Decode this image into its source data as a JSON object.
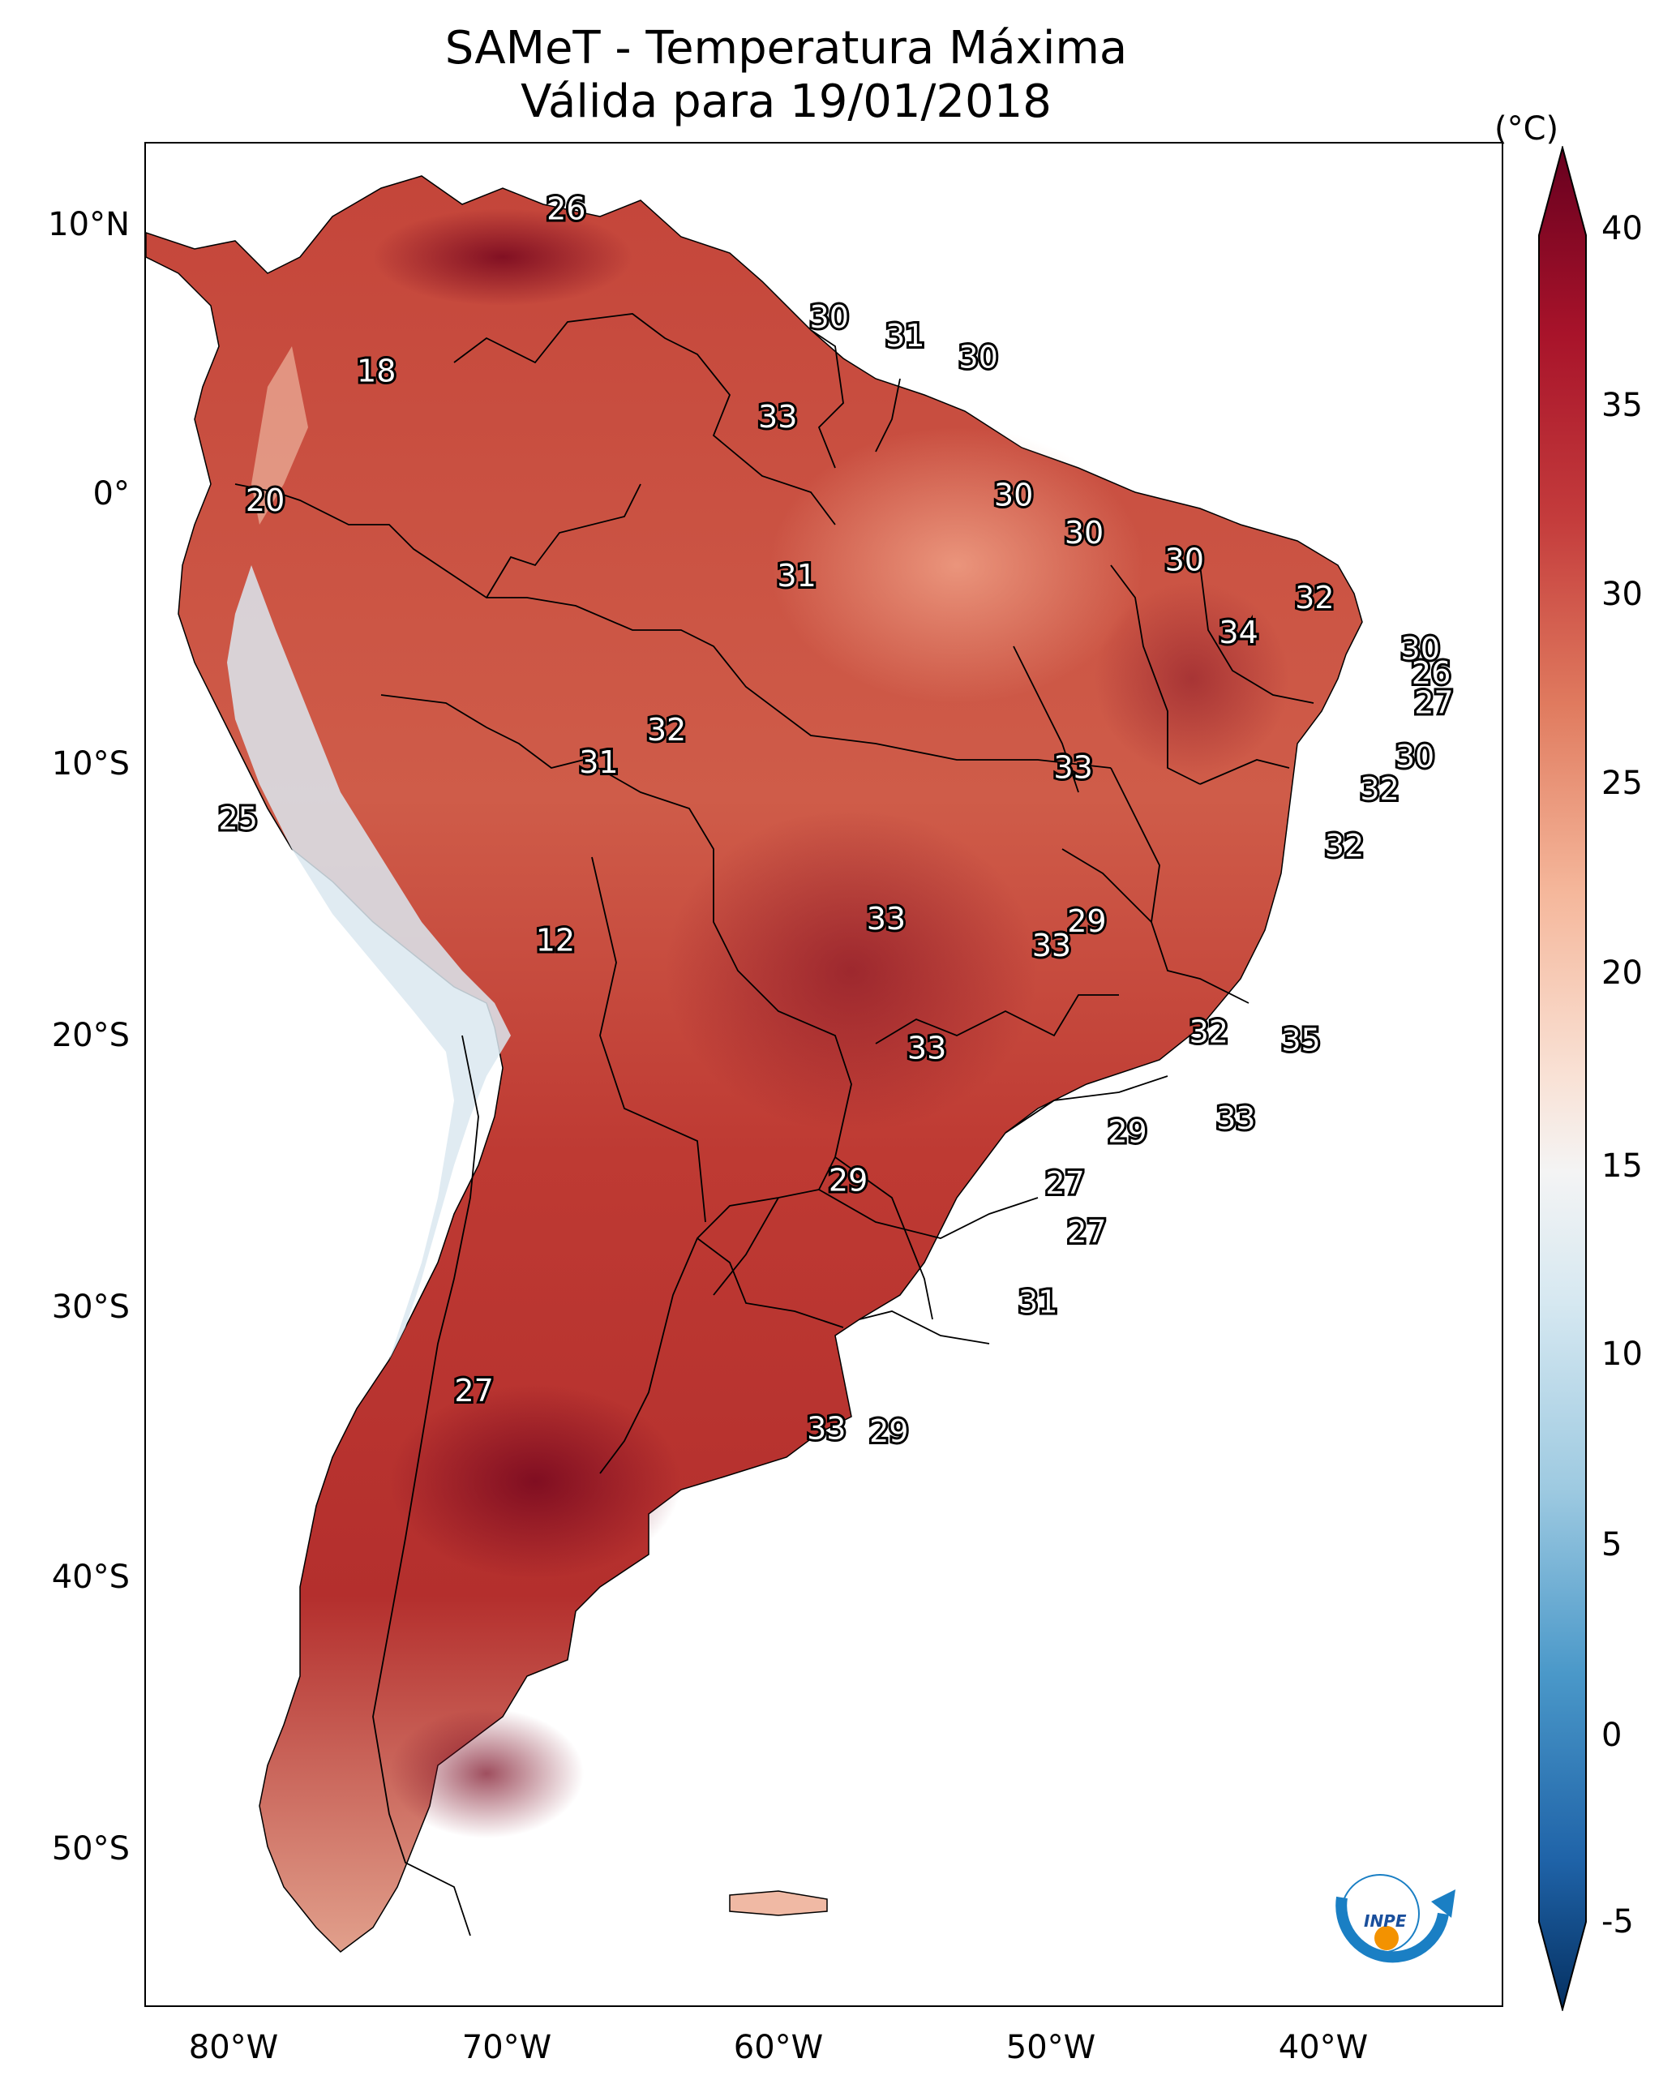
{
  "title": {
    "line1": "SAMeT - Temperatura Máxima",
    "line2": "Válida para 19/01/2018"
  },
  "colorbar": {
    "unit": "(°C)",
    "ticks": [
      "40",
      "35",
      "30",
      "25",
      "20",
      "15",
      "10",
      "5",
      "0",
      "-5"
    ],
    "colors": [
      "#67001f",
      "#b2182b",
      "#d6604d",
      "#f4a582",
      "#fddbc7",
      "#f7f7f7",
      "#d1e5f0",
      "#92c5de",
      "#4393c3",
      "#2166ac",
      "#053061"
    ]
  },
  "axes": {
    "lat_labels": [
      "10°N",
      "0°",
      "10°S",
      "20°S",
      "30°S",
      "40°S",
      "50°S"
    ],
    "lon_labels": [
      "80°W",
      "70°W",
      "60°W",
      "50°W",
      "40°W"
    ]
  },
  "map_data": {
    "variable": "Temperatura Máxima",
    "units": "°C",
    "lon_range": [
      -83,
      -33
    ],
    "lat_range": [
      -56,
      13
    ],
    "contour_labels": [
      {
        "value": "26",
        "lon": -67.5,
        "lat": 10.5
      },
      {
        "value": "18",
        "lon": -74.5,
        "lat": 4.5
      },
      {
        "value": "30",
        "lon": -57.8,
        "lat": 6.5
      },
      {
        "value": "31",
        "lon": -55.0,
        "lat": 5.8
      },
      {
        "value": "30",
        "lon": -52.3,
        "lat": 5.0
      },
      {
        "value": "33",
        "lon": -59.7,
        "lat": 2.8
      },
      {
        "value": "20",
        "lon": -78.6,
        "lat": -0.3
      },
      {
        "value": "30",
        "lon": -51.0,
        "lat": -0.1
      },
      {
        "value": "30",
        "lon": -48.4,
        "lat": -1.5
      },
      {
        "value": "30",
        "lon": -44.7,
        "lat": -2.5
      },
      {
        "value": "31",
        "lon": -59.0,
        "lat": -3.1
      },
      {
        "value": "32",
        "lon": -39.9,
        "lat": -3.9
      },
      {
        "value": "34",
        "lon": -42.7,
        "lat": -5.2
      },
      {
        "value": "30",
        "lon": -36.0,
        "lat": -5.8
      },
      {
        "value": "26",
        "lon": -35.6,
        "lat": -6.7
      },
      {
        "value": "27",
        "lon": -35.5,
        "lat": -7.8
      },
      {
        "value": "32",
        "lon": -63.8,
        "lat": -8.8
      },
      {
        "value": "31",
        "lon": -66.3,
        "lat": -10.0
      },
      {
        "value": "33",
        "lon": -48.8,
        "lat": -10.2
      },
      {
        "value": "30",
        "lon": -36.2,
        "lat": -9.8
      },
      {
        "value": "32",
        "lon": -37.5,
        "lat": -11.0
      },
      {
        "value": "25",
        "lon": -79.6,
        "lat": -12.1
      },
      {
        "value": "32",
        "lon": -38.8,
        "lat": -13.1
      },
      {
        "value": "33",
        "lon": -55.7,
        "lat": -15.8
      },
      {
        "value": "29",
        "lon": -48.3,
        "lat": -15.9
      },
      {
        "value": "33",
        "lon": -49.6,
        "lat": -16.8
      },
      {
        "value": "12",
        "lon": -67.9,
        "lat": -16.6
      },
      {
        "value": "32",
        "lon": -43.8,
        "lat": -20.0
      },
      {
        "value": "35",
        "lon": -40.4,
        "lat": -20.3
      },
      {
        "value": "33",
        "lon": -54.2,
        "lat": -20.6
      },
      {
        "value": "33",
        "lon": -42.8,
        "lat": -23.2
      },
      {
        "value": "29",
        "lon": -46.8,
        "lat": -23.7
      },
      {
        "value": "29",
        "lon": -57.1,
        "lat": -25.5
      },
      {
        "value": "27",
        "lon": -49.1,
        "lat": -25.6
      },
      {
        "value": "27",
        "lon": -48.3,
        "lat": -27.4
      },
      {
        "value": "31",
        "lon": -50.1,
        "lat": -30.0
      },
      {
        "value": "27",
        "lon": -70.9,
        "lat": -33.3
      },
      {
        "value": "33",
        "lon": -57.9,
        "lat": -34.7
      },
      {
        "value": "29",
        "lon": -55.6,
        "lat": -34.8
      }
    ]
  },
  "logo": {
    "text": "INPE"
  }
}
